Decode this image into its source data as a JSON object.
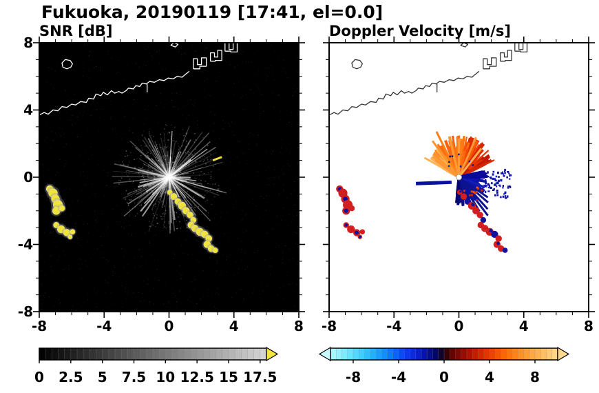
{
  "header": {
    "title": "Fukuoka, 20190119 [17:41, el=0.0]"
  },
  "panels": {
    "snr": {
      "title": "SNR [dB]"
    },
    "vel": {
      "title": "Doppler Velocity [m/s]"
    }
  },
  "chart_data": [
    {
      "type": "heatmap",
      "title": "SNR [dB]",
      "xlim": [
        -8,
        8
      ],
      "ylim": [
        -8,
        8
      ],
      "xticks": [
        -8,
        -4,
        0,
        4,
        8
      ],
      "yticks": [
        -8,
        -4,
        0,
        4,
        8
      ],
      "minor_tick_step": 1,
      "background": "#000000",
      "coast_color": "#ffffff",
      "colorbar": {
        "range": [
          0,
          18
        ],
        "major_ticks": [
          0,
          2.5,
          5,
          7.5,
          10,
          12.5,
          15,
          17.5
        ],
        "minor_step": 0.5,
        "gradient": [
          [
            0,
            "#000000"
          ],
          [
            1,
            "#d6d6d6"
          ]
        ],
        "arrow_right": "#f2e53e",
        "arrow_left": null
      },
      "features": {
        "center": [
          0,
          0
        ],
        "center_color": "#ffffff",
        "snr_blob_color": "#f0e43c",
        "streak": {
          "from": [
            2.7,
            1.0
          ],
          "to": [
            3.25,
            1.2
          ],
          "color": "#f0e43c"
        },
        "rays": {
          "count": 175,
          "bright_count": 22,
          "max_len": 3.7
        },
        "coastlines": [
          [
            [
              -8,
              3.7
            ],
            [
              -7.7,
              3.85
            ],
            [
              -7.45,
              3.75
            ],
            [
              -7.15,
              4.0
            ],
            [
              -6.85,
              3.95
            ],
            [
              -6.6,
              4.2
            ],
            [
              -6.3,
              4.15
            ],
            [
              -6.0,
              4.35
            ],
            [
              -5.75,
              4.3
            ],
            [
              -5.45,
              4.5
            ],
            [
              -5.1,
              4.45
            ],
            [
              -4.95,
              4.7
            ],
            [
              -4.65,
              4.65
            ],
            [
              -4.5,
              4.95
            ],
            [
              -4.2,
              4.85
            ],
            [
              -4.05,
              5.05
            ],
            [
              -3.8,
              4.9
            ],
            [
              -3.55,
              5.15
            ],
            [
              -3.35,
              5.0
            ],
            [
              -3.1,
              5.1
            ],
            [
              -2.9,
              5.0
            ],
            [
              -2.65,
              5.15
            ],
            [
              -2.5,
              5.3
            ],
            [
              -2.2,
              5.25
            ],
            [
              -2.05,
              5.45
            ],
            [
              -1.8,
              5.4
            ],
            [
              -1.65,
              5.6
            ],
            [
              -1.4,
              5.55
            ],
            [
              -1.2,
              5.7
            ],
            [
              -0.9,
              5.65
            ],
            [
              -0.6,
              5.8
            ],
            [
              -0.3,
              5.75
            ],
            [
              -0.05,
              5.9
            ],
            [
              0.25,
              5.85
            ],
            [
              0.5,
              6.0
            ],
            [
              0.8,
              5.95
            ],
            [
              1.05,
              6.15
            ],
            [
              1.25,
              6.3
            ]
          ],
          [
            [
              -1.35,
              5.55
            ],
            [
              -1.35,
              5.05
            ]
          ],
          [
            [
              -6.55,
              6.55
            ],
            [
              -6.3,
              6.45
            ],
            [
              -6.05,
              6.55
            ],
            [
              -5.95,
              6.75
            ],
            [
              -6.1,
              6.95
            ],
            [
              -6.4,
              7.0
            ],
            [
              -6.6,
              6.8
            ],
            [
              -6.55,
              6.55
            ]
          ],
          [
            [
              1.5,
              6.45
            ],
            [
              1.5,
              7.05
            ],
            [
              1.75,
              7.05
            ],
            [
              1.75,
              6.7
            ],
            [
              2.0,
              6.7
            ],
            [
              2.0,
              7.1
            ],
            [
              2.3,
              7.1
            ],
            [
              2.3,
              6.6
            ],
            [
              1.9,
              6.6
            ],
            [
              1.9,
              6.45
            ],
            [
              1.5,
              6.45
            ]
          ],
          [
            [
              2.55,
              6.9
            ],
            [
              2.55,
              7.4
            ],
            [
              2.8,
              7.4
            ],
            [
              2.8,
              7.15
            ],
            [
              3.0,
              7.15
            ],
            [
              3.0,
              7.55
            ],
            [
              3.25,
              7.55
            ],
            [
              3.25,
              6.95
            ],
            [
              2.85,
              6.95
            ],
            [
              2.85,
              6.9
            ],
            [
              2.55,
              6.9
            ]
          ],
          [
            [
              3.45,
              7.5
            ],
            [
              3.45,
              8.0
            ],
            [
              3.7,
              8.0
            ],
            [
              3.7,
              7.6
            ],
            [
              3.95,
              7.6
            ],
            [
              3.95,
              8.0
            ],
            [
              4.2,
              8.0
            ],
            [
              4.2,
              7.45
            ],
            [
              3.8,
              7.45
            ],
            [
              3.8,
              7.5
            ],
            [
              3.45,
              7.5
            ]
          ],
          [
            [
              0.1,
              7.85
            ],
            [
              0.3,
              8.0
            ],
            [
              0.55,
              7.9
            ],
            [
              0.4,
              7.75
            ],
            [
              0.1,
              7.85
            ]
          ]
        ],
        "blobs": {
          "left_upper": [
            [
              -7.35,
              -0.7,
              0.22
            ],
            [
              -7.15,
              -0.95,
              0.28
            ],
            [
              -7.0,
              -1.3,
              0.26
            ],
            [
              -6.85,
              -1.65,
              0.3
            ],
            [
              -6.95,
              -2.0,
              0.24
            ],
            [
              -6.6,
              -1.85,
              0.18
            ]
          ],
          "left_lower": [
            [
              -6.95,
              -2.85,
              0.18
            ],
            [
              -6.65,
              -3.1,
              0.24
            ],
            [
              -6.3,
              -3.3,
              0.22
            ],
            [
              -5.95,
              -3.25,
              0.16
            ],
            [
              -6.1,
              -3.55,
              0.14
            ]
          ],
          "chain": [
            [
              0.05,
              -0.9,
              0.16
            ],
            [
              0.3,
              -1.15,
              0.2
            ],
            [
              0.55,
              -1.45,
              0.2
            ],
            [
              0.8,
              -1.7,
              0.24
            ],
            [
              1.05,
              -2.0,
              0.22
            ],
            [
              1.3,
              -2.25,
              0.2
            ],
            [
              1.5,
              -2.55,
              0.18
            ],
            [
              1.35,
              -2.85,
              0.2
            ],
            [
              1.6,
              -3.05,
              0.22
            ],
            [
              1.9,
              -3.25,
              0.24
            ],
            [
              2.2,
              -3.4,
              0.22
            ],
            [
              2.45,
              -3.65,
              0.2
            ],
            [
              2.35,
              -4.0,
              0.22
            ],
            [
              2.6,
              -4.25,
              0.2
            ],
            [
              2.85,
              -4.35,
              0.16
            ]
          ]
        }
      }
    },
    {
      "type": "heatmap",
      "title": "Doppler Velocity [m/s]",
      "xlim": [
        -8,
        8
      ],
      "ylim": [
        -8,
        8
      ],
      "xticks": [
        -8,
        -4,
        0,
        4,
        8
      ],
      "yticks": [
        -8,
        -4,
        0,
        4,
        8
      ],
      "minor_tick_step": 1,
      "background": "#ffffff",
      "coast_color": "#333333",
      "colorbar": {
        "range": [
          -10,
          10
        ],
        "major_ticks": [
          -8,
          -4,
          0,
          4,
          8
        ],
        "minor_step": 0.5,
        "gradient": [
          [
            0,
            "#b4f8ff"
          ],
          [
            0.08,
            "#6ae8ff"
          ],
          [
            0.16,
            "#2cc4ff"
          ],
          [
            0.25,
            "#0c86ff"
          ],
          [
            0.33,
            "#0a3cf0"
          ],
          [
            0.41,
            "#0714b4"
          ],
          [
            0.47,
            "#03055e"
          ],
          [
            0.5,
            "#1c0208"
          ],
          [
            0.53,
            "#5e0202"
          ],
          [
            0.6,
            "#a80d00"
          ],
          [
            0.68,
            "#e22f00"
          ],
          [
            0.77,
            "#ff6a00"
          ],
          [
            0.86,
            "#ff9c2e"
          ],
          [
            0.95,
            "#ffc469"
          ],
          [
            1,
            "#ffd98f"
          ]
        ],
        "arrow_right": "#ffd98f",
        "arrow_left": "#c8fbff"
      },
      "features": {
        "center": [
          0,
          0
        ],
        "center_color": "#ffffff",
        "warm_fan": {
          "angle_deg": [
            25,
            152
          ],
          "r": [
            0.5,
            2.55
          ],
          "count": 300
        },
        "cool_fan": {
          "angle_deg": [
            -97,
            14
          ],
          "r": [
            0.35,
            1.8
          ],
          "count": 260
        },
        "warm_spikes": [
          [
            117,
            3.05
          ],
          [
            127,
            2.7
          ],
          [
            104,
            2.45
          ],
          [
            66,
            2.6
          ],
          [
            51,
            2.2
          ],
          [
            142,
            2.0
          ],
          [
            90,
            2.3
          ]
        ],
        "cool_spikes": [
          [
            -52,
            2.9
          ],
          [
            -47,
            2.6
          ],
          [
            -40,
            2.35
          ],
          [
            -34,
            2.15
          ],
          [
            -58,
            2.4
          ]
        ],
        "cool_streak": {
          "from": [
            -2.65,
            -0.38
          ],
          "to": [
            -0.45,
            -0.3
          ],
          "color": "#0a12a0",
          "width": 5
        },
        "blob_warm": "#d21f1f",
        "blob_cool": "#12129c"
      }
    }
  ]
}
